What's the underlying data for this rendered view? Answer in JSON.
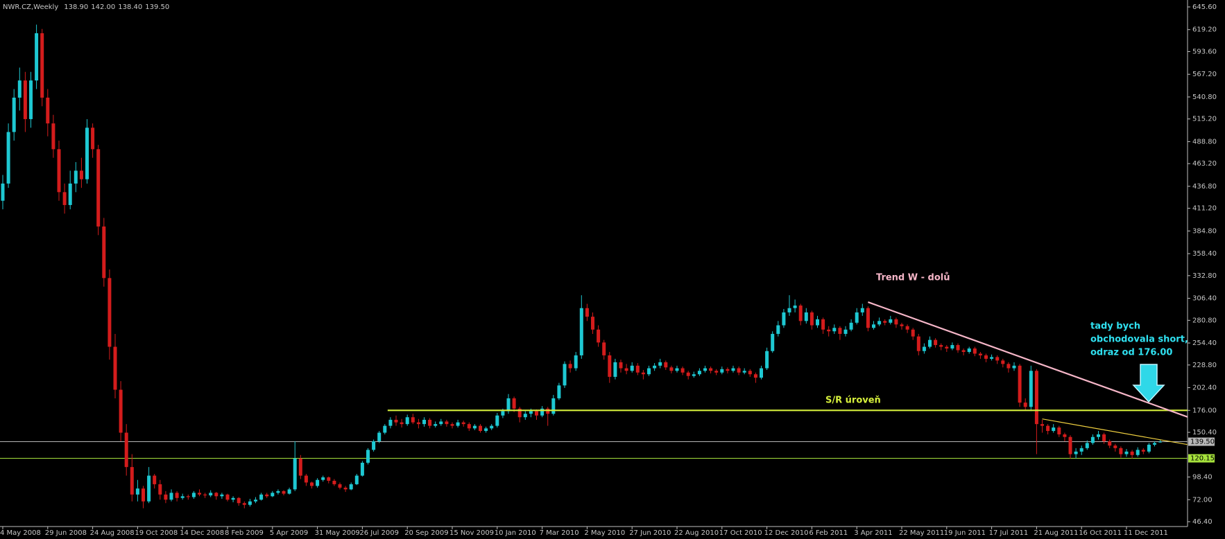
{
  "chart_data": {
    "type": "candlestick",
    "title": "NWR.CZ,Weekly",
    "last_bar_labels": [
      "138.90",
      "142.00",
      "138.40",
      "139.50"
    ],
    "up_color": "#1ec8d2",
    "down_color": "#d41c1c",
    "ylim": [
      46.4,
      645.6
    ],
    "yticks": [
      {
        "value": 645.6,
        "label": "645.60"
      },
      {
        "value": 619.2,
        "label": "619.20"
      },
      {
        "value": 593.6,
        "label": "593.60"
      },
      {
        "value": 567.2,
        "label": "567.20"
      },
      {
        "value": 540.8,
        "label": "540.80"
      },
      {
        "value": 515.2,
        "label": "515.20"
      },
      {
        "value": 488.8,
        "label": "488.80"
      },
      {
        "value": 463.2,
        "label": "463.20"
      },
      {
        "value": 436.8,
        "label": "436.80"
      },
      {
        "value": 411.2,
        "label": "411.20"
      },
      {
        "value": 384.8,
        "label": "384.80"
      },
      {
        "value": 358.4,
        "label": "358.40"
      },
      {
        "value": 332.8,
        "label": "332.80"
      },
      {
        "value": 306.4,
        "label": "306.40"
      },
      {
        "value": 280.8,
        "label": "280.80"
      },
      {
        "value": 254.4,
        "label": "254.40"
      },
      {
        "value": 228.8,
        "label": "228.80"
      },
      {
        "value": 202.4,
        "label": "202.40"
      },
      {
        "value": 176,
        "label": "176.00"
      },
      {
        "value": 150.4,
        "label": "150.40"
      },
      {
        "value": 98.4,
        "label": "98.40"
      },
      {
        "value": 72,
        "label": "72.00"
      },
      {
        "value": 46.4,
        "label": "46.40"
      }
    ],
    "categories": [
      "4 May 2008",
      null,
      null,
      null,
      null,
      null,
      null,
      null,
      "29 Jun 2008",
      null,
      null,
      null,
      null,
      null,
      null,
      null,
      "24 Aug 2008",
      null,
      null,
      null,
      null,
      null,
      null,
      null,
      "19 Oct 2008",
      null,
      null,
      null,
      null,
      null,
      null,
      null,
      "14 Dec 2008",
      null,
      null,
      null,
      null,
      null,
      null,
      null,
      "8 Feb 2009",
      null,
      null,
      null,
      null,
      null,
      null,
      null,
      "5 Apr 2009",
      null,
      null,
      null,
      null,
      null,
      null,
      null,
      "31 May 2009",
      null,
      null,
      null,
      null,
      null,
      null,
      null,
      "26 Jul 2009",
      null,
      null,
      null,
      null,
      null,
      null,
      null,
      "20 Sep 2009",
      null,
      null,
      null,
      null,
      null,
      null,
      null,
      "15 Nov 2009",
      null,
      null,
      null,
      null,
      null,
      null,
      null,
      "10 Jan 2010",
      null,
      null,
      null,
      null,
      null,
      null,
      null,
      "7 Mar 2010",
      null,
      null,
      null,
      null,
      null,
      null,
      null,
      "2 May 2010",
      null,
      null,
      null,
      null,
      null,
      null,
      null,
      "27 Jun 2010",
      null,
      null,
      null,
      null,
      null,
      null,
      null,
      "22 Aug 2010",
      null,
      null,
      null,
      null,
      null,
      null,
      null,
      "17 Oct 2010",
      null,
      null,
      null,
      null,
      null,
      null,
      null,
      "12 Dec 2010",
      null,
      null,
      null,
      null,
      null,
      null,
      null,
      "6 Feb 2011",
      null,
      null,
      null,
      null,
      null,
      null,
      null,
      "3 Apr 2011",
      null,
      null,
      null,
      null,
      null,
      null,
      null,
      "22 May 2011",
      null,
      null,
      null,
      null,
      null,
      null,
      null,
      "19 Jun 2011",
      null,
      null,
      null,
      null,
      null,
      null,
      null,
      "17 Jul 2011",
      null,
      null,
      null,
      null,
      null,
      null,
      null,
      "21 Aug 2011",
      null,
      null,
      null,
      null,
      null,
      null,
      null,
      "16 Oct 2011",
      null,
      null,
      null,
      null,
      null,
      null,
      null,
      "11 Dec 2011",
      null,
      null,
      null,
      null,
      null,
      null
    ],
    "candles": [
      [
        420,
        450,
        410,
        440
      ],
      [
        440,
        510,
        435,
        500
      ],
      [
        500,
        550,
        490,
        540
      ],
      [
        540,
        575,
        525,
        560
      ],
      [
        560,
        570,
        500,
        515
      ],
      [
        515,
        570,
        505,
        560
      ],
      [
        560,
        625,
        550,
        615
      ],
      [
        615,
        620,
        530,
        540
      ],
      [
        540,
        550,
        495,
        510
      ],
      [
        510,
        520,
        470,
        480
      ],
      [
        480,
        490,
        420,
        430
      ],
      [
        430,
        440,
        405,
        415
      ],
      [
        415,
        455,
        410,
        440
      ],
      [
        440,
        465,
        430,
        455
      ],
      [
        455,
        470,
        435,
        445
      ],
      [
        445,
        515,
        440,
        505
      ],
      [
        505,
        510,
        470,
        480
      ],
      [
        480,
        485,
        380,
        390
      ],
      [
        390,
        400,
        320,
        330
      ],
      [
        330,
        340,
        235,
        250
      ],
      [
        250,
        265,
        190,
        200
      ],
      [
        200,
        210,
        140,
        150
      ],
      [
        150,
        160,
        100,
        110
      ],
      [
        110,
        125,
        70,
        78
      ],
      [
        78,
        95,
        70,
        85
      ],
      [
        85,
        88,
        62,
        70
      ],
      [
        70,
        110,
        68,
        100
      ],
      [
        100,
        102,
        85,
        90
      ],
      [
        90,
        95,
        72,
        78
      ],
      [
        78,
        82,
        68,
        72
      ],
      [
        72,
        84,
        70,
        80
      ],
      [
        80,
        82,
        70,
        74
      ],
      [
        74,
        79,
        72,
        76
      ],
      [
        76,
        78,
        72,
        75
      ],
      [
        75,
        82,
        73,
        80
      ],
      [
        80,
        84,
        76,
        78
      ],
      [
        78,
        80,
        74,
        77
      ],
      [
        77,
        83,
        75,
        80
      ],
      [
        80,
        81,
        72,
        76
      ],
      [
        76,
        80,
        73,
        78
      ],
      [
        78,
        79,
        70,
        72
      ],
      [
        72,
        76,
        69,
        74
      ],
      [
        74,
        75,
        65,
        68
      ],
      [
        68,
        70,
        62,
        66
      ],
      [
        66,
        73,
        64,
        70
      ],
      [
        70,
        75,
        68,
        72
      ],
      [
        72,
        80,
        71,
        78
      ],
      [
        78,
        80,
        74,
        76
      ],
      [
        76,
        82,
        75,
        80
      ],
      [
        80,
        84,
        78,
        82
      ],
      [
        82,
        83,
        77,
        79
      ],
      [
        79,
        86,
        78,
        84
      ],
      [
        84,
        140,
        82,
        120
      ],
      [
        120,
        124,
        96,
        100
      ],
      [
        100,
        102,
        88,
        92
      ],
      [
        92,
        93,
        85,
        88
      ],
      [
        88,
        97,
        86,
        95
      ],
      [
        95,
        100,
        93,
        98
      ],
      [
        98,
        99,
        91,
        94
      ],
      [
        94,
        96,
        88,
        90
      ],
      [
        90,
        92,
        84,
        86
      ],
      [
        86,
        88,
        81,
        84
      ],
      [
        84,
        92,
        83,
        90
      ],
      [
        90,
        102,
        89,
        100
      ],
      [
        100,
        117,
        99,
        115
      ],
      [
        115,
        132,
        113,
        130
      ],
      [
        130,
        142,
        128,
        140
      ],
      [
        140,
        152,
        138,
        150
      ],
      [
        150,
        160,
        148,
        158
      ],
      [
        158,
        168,
        155,
        165
      ],
      [
        165,
        170,
        158,
        162
      ],
      [
        162,
        166,
        156,
        160
      ],
      [
        160,
        171,
        158,
        168
      ],
      [
        168,
        172,
        160,
        162
      ],
      [
        162,
        166,
        155,
        160
      ],
      [
        160,
        168,
        157,
        165
      ],
      [
        165,
        167,
        155,
        158
      ],
      [
        158,
        163,
        156,
        160
      ],
      [
        160,
        166,
        158,
        163
      ],
      [
        163,
        165,
        157,
        160
      ],
      [
        160,
        162,
        155,
        158
      ],
      [
        158,
        165,
        156,
        162
      ],
      [
        162,
        164,
        157,
        160
      ],
      [
        160,
        162,
        152,
        155
      ],
      [
        155,
        160,
        153,
        158
      ],
      [
        158,
        160,
        150,
        152
      ],
      [
        152,
        157,
        150,
        155
      ],
      [
        155,
        160,
        153,
        158
      ],
      [
        158,
        173,
        156,
        170
      ],
      [
        170,
        178,
        167,
        175
      ],
      [
        175,
        195,
        172,
        190
      ],
      [
        190,
        192,
        174,
        178
      ],
      [
        178,
        180,
        162,
        168
      ],
      [
        168,
        175,
        165,
        172
      ],
      [
        172,
        178,
        168,
        175
      ],
      [
        175,
        177,
        165,
        170
      ],
      [
        170,
        181,
        168,
        178
      ],
      [
        178,
        180,
        158,
        172
      ],
      [
        172,
        194,
        170,
        190
      ],
      [
        190,
        208,
        188,
        205
      ],
      [
        205,
        233,
        202,
        230
      ],
      [
        230,
        234,
        220,
        225
      ],
      [
        225,
        244,
        222,
        240
      ],
      [
        240,
        310,
        236,
        295
      ],
      [
        295,
        300,
        280,
        285
      ],
      [
        285,
        290,
        265,
        270
      ],
      [
        270,
        275,
        250,
        255
      ],
      [
        255,
        258,
        235,
        240
      ],
      [
        240,
        244,
        208,
        215
      ],
      [
        215,
        236,
        212,
        232
      ],
      [
        232,
        235,
        220,
        225
      ],
      [
        225,
        230,
        218,
        222
      ],
      [
        222,
        232,
        220,
        228
      ],
      [
        228,
        231,
        217,
        220
      ],
      [
        220,
        223,
        212,
        218
      ],
      [
        218,
        228,
        216,
        225
      ],
      [
        225,
        231,
        222,
        228
      ],
      [
        228,
        236,
        225,
        232
      ],
      [
        232,
        234,
        223,
        226
      ],
      [
        226,
        228,
        219,
        222
      ],
      [
        222,
        228,
        220,
        225
      ],
      [
        225,
        227,
        217,
        220
      ],
      [
        220,
        222,
        212,
        216
      ],
      [
        216,
        221,
        214,
        218
      ],
      [
        218,
        225,
        216,
        222
      ],
      [
        222,
        228,
        220,
        225
      ],
      [
        225,
        227,
        219,
        222
      ],
      [
        222,
        224,
        217,
        220
      ],
      [
        220,
        227,
        218,
        224
      ],
      [
        224,
        226,
        219,
        222
      ],
      [
        222,
        228,
        220,
        225
      ],
      [
        225,
        227,
        217,
        220
      ],
      [
        220,
        225,
        218,
        222
      ],
      [
        222,
        224,
        215,
        218
      ],
      [
        218,
        220,
        208,
        214
      ],
      [
        214,
        228,
        212,
        225
      ],
      [
        225,
        249,
        223,
        245
      ],
      [
        245,
        268,
        243,
        265
      ],
      [
        265,
        280,
        262,
        275
      ],
      [
        275,
        294,
        272,
        290
      ],
      [
        290,
        310,
        286,
        295
      ],
      [
        295,
        305,
        290,
        298
      ],
      [
        298,
        300,
        275,
        280
      ],
      [
        280,
        295,
        277,
        290
      ],
      [
        290,
        292,
        270,
        275
      ],
      [
        275,
        286,
        272,
        282
      ],
      [
        282,
        284,
        265,
        270
      ],
      [
        270,
        274,
        262,
        268
      ],
      [
        268,
        276,
        265,
        272
      ],
      [
        272,
        274,
        258,
        265
      ],
      [
        265,
        274,
        262,
        270
      ],
      [
        270,
        282,
        268,
        278
      ],
      [
        278,
        295,
        276,
        290
      ],
      [
        290,
        300,
        286,
        295
      ],
      [
        295,
        297,
        268,
        272
      ],
      [
        272,
        280,
        270,
        276
      ],
      [
        276,
        284,
        274,
        280
      ],
      [
        280,
        282,
        275,
        278
      ],
      [
        278,
        286,
        276,
        282
      ],
      [
        282,
        284,
        272,
        276
      ],
      [
        276,
        278,
        270,
        274
      ],
      [
        274,
        276,
        266,
        270
      ],
      [
        270,
        272,
        258,
        262
      ],
      [
        262,
        265,
        240,
        245
      ],
      [
        245,
        254,
        242,
        250
      ],
      [
        250,
        262,
        248,
        258
      ],
      [
        258,
        260,
        249,
        252
      ],
      [
        252,
        254,
        246,
        250
      ],
      [
        250,
        252,
        244,
        248
      ],
      [
        248,
        255,
        246,
        252
      ],
      [
        252,
        254,
        243,
        246
      ],
      [
        246,
        248,
        240,
        244
      ],
      [
        244,
        250,
        242,
        248
      ],
      [
        248,
        250,
        239,
        242
      ],
      [
        242,
        244,
        236,
        240
      ],
      [
        240,
        242,
        232,
        236
      ],
      [
        236,
        241,
        234,
        238
      ],
      [
        238,
        240,
        230,
        234
      ],
      [
        234,
        236,
        226,
        230
      ],
      [
        230,
        232,
        220,
        225
      ],
      [
        225,
        232,
        222,
        228
      ],
      [
        228,
        230,
        180,
        185
      ],
      [
        185,
        190,
        176,
        180
      ],
      [
        180,
        228,
        175,
        222
      ],
      [
        222,
        224,
        125,
        160
      ],
      [
        160,
        165,
        150,
        158
      ],
      [
        158,
        160,
        148,
        152
      ],
      [
        152,
        160,
        150,
        156
      ],
      [
        156,
        158,
        145,
        148
      ],
      [
        148,
        150,
        140,
        145
      ],
      [
        145,
        147,
        120,
        125
      ],
      [
        125,
        132,
        120,
        128
      ],
      [
        128,
        135,
        124,
        132
      ],
      [
        132,
        141,
        130,
        138
      ],
      [
        138,
        148,
        136,
        145
      ],
      [
        145,
        152,
        142,
        148
      ],
      [
        148,
        150,
        137,
        140
      ],
      [
        140,
        142,
        132,
        135
      ],
      [
        135,
        137,
        128,
        132
      ],
      [
        132,
        134,
        121,
        125
      ],
      [
        125,
        131,
        122,
        128
      ],
      [
        128,
        130,
        120,
        124
      ],
      [
        124,
        133,
        122,
        130
      ],
      [
        130,
        132,
        125,
        128
      ],
      [
        128,
        138,
        126,
        136
      ],
      [
        136,
        140,
        134,
        138
      ],
      [
        138.9,
        142,
        138.4,
        139.5
      ]
    ],
    "price_marks": [
      {
        "value": 139.5,
        "label": "139.50",
        "color": "#b8b8b8"
      },
      {
        "value": 120.15,
        "label": "120.15",
        "color": "#a6e23c"
      }
    ],
    "trendlines": [
      {
        "x": [
          68.5,
          211
        ],
        "y": [
          176,
          176
        ],
        "color": "#d6f03c"
      },
      {
        "x": [
          154,
          211
        ],
        "y": [
          302,
          168
        ],
        "color": "#f6b6c8"
      },
      {
        "x": [
          185,
          211
        ],
        "y": [
          166,
          136
        ],
        "color": "#f0d040"
      }
    ],
    "annotations": [
      {
        "text": "Trend W - dolů",
        "color": "#f6b6c8"
      },
      {
        "text": "S/R úroveň",
        "color": "#d6f03c"
      },
      {
        "lines": [
          "tady bych",
          "obchodovala short,",
          "odraz od 176.00"
        ],
        "color": "#2fe0f0"
      }
    ]
  }
}
